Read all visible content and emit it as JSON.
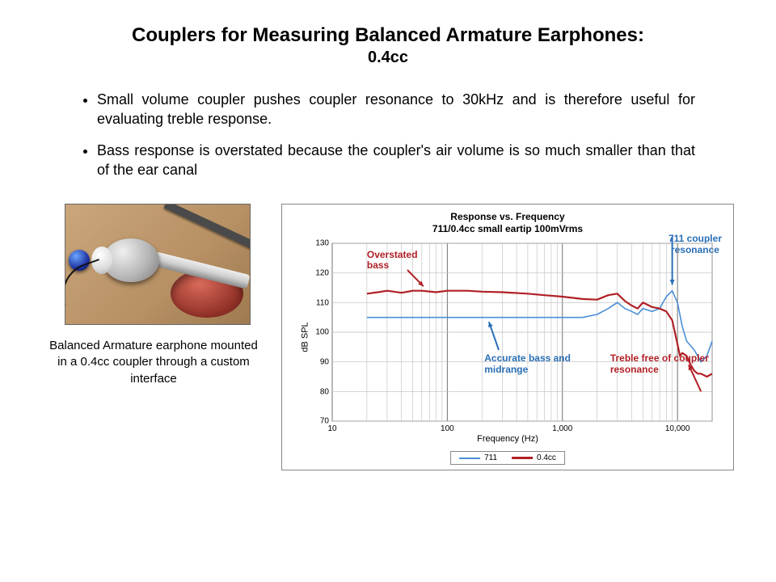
{
  "title": {
    "main": "Couplers for Measuring Balanced Armature Earphones:",
    "sub": "0.4cc"
  },
  "bullets": [
    "Small volume coupler pushes coupler resonance to 30kHz and is therefore useful for evaluating treble response.",
    "Bass response is overstated because the coupler's air volume is so much smaller than that of the ear canal"
  ],
  "photo": {
    "caption": "Balanced Armature earphone mounted in a 0.4cc coupler through a custom interface"
  },
  "chart": {
    "type": "line-log-x",
    "title_line1": "Response vs. Frequency",
    "title_line2": "711/0.4cc small eartip 100mVrms",
    "ylabel": "dB SPL",
    "xlabel": "Frequency (Hz)",
    "xlim": [
      10,
      20000
    ],
    "ylim": [
      70,
      130
    ],
    "ytick_step": 10,
    "yticks": [
      70,
      80,
      90,
      100,
      110,
      120,
      130
    ],
    "xticks_major": [
      10,
      100,
      1000,
      10000
    ],
    "xticks_minor": [
      20,
      30,
      40,
      50,
      60,
      70,
      80,
      90,
      200,
      300,
      400,
      500,
      600,
      700,
      800,
      900,
      2000,
      3000,
      4000,
      5000,
      6000,
      7000,
      8000,
      9000,
      20000
    ],
    "grid_major_color": "#707070",
    "grid_minor_color": "#bdbdbd",
    "background_color": "#ffffff",
    "line_width_711": 1.6,
    "line_width_04": 2.2,
    "series": [
      {
        "name": "711",
        "color": "#4a8fd8",
        "points": [
          [
            20,
            105
          ],
          [
            30,
            105
          ],
          [
            50,
            105
          ],
          [
            100,
            105
          ],
          [
            200,
            105
          ],
          [
            400,
            105
          ],
          [
            700,
            105
          ],
          [
            1000,
            105
          ],
          [
            1500,
            105
          ],
          [
            2000,
            106
          ],
          [
            2500,
            108
          ],
          [
            3000,
            110
          ],
          [
            3500,
            108
          ],
          [
            4000,
            107
          ],
          [
            4500,
            106
          ],
          [
            5000,
            108
          ],
          [
            6000,
            107
          ],
          [
            7000,
            108
          ],
          [
            8000,
            112
          ],
          [
            9000,
            114
          ],
          [
            10000,
            110
          ],
          [
            11000,
            102
          ],
          [
            12000,
            97
          ],
          [
            14000,
            94
          ],
          [
            16000,
            90
          ],
          [
            18000,
            92
          ],
          [
            20000,
            97
          ]
        ]
      },
      {
        "name": "0.4cc",
        "color": "#b02026",
        "points": [
          [
            20,
            113
          ],
          [
            25,
            113.5
          ],
          [
            30,
            114
          ],
          [
            40,
            113.3
          ],
          [
            50,
            114
          ],
          [
            60,
            114
          ],
          [
            80,
            113.5
          ],
          [
            100,
            114
          ],
          [
            150,
            114
          ],
          [
            200,
            113.7
          ],
          [
            300,
            113.5
          ],
          [
            500,
            113
          ],
          [
            700,
            112.5
          ],
          [
            1000,
            112
          ],
          [
            1500,
            111.2
          ],
          [
            2000,
            111
          ],
          [
            2500,
            112.5
          ],
          [
            3000,
            113
          ],
          [
            3500,
            110.5
          ],
          [
            4000,
            109
          ],
          [
            4500,
            108
          ],
          [
            5000,
            110
          ],
          [
            6000,
            108.5
          ],
          [
            7000,
            108
          ],
          [
            8000,
            107
          ],
          [
            9000,
            104
          ],
          [
            10000,
            96
          ],
          [
            10500,
            92
          ],
          [
            11000,
            93
          ],
          [
            12000,
            92
          ],
          [
            13000,
            89
          ],
          [
            14000,
            87
          ],
          [
            15000,
            86
          ],
          [
            16000,
            86
          ],
          [
            18000,
            85
          ],
          [
            20000,
            86
          ]
        ]
      }
    ],
    "legend": {
      "items": [
        "711",
        "0.4cc"
      ]
    },
    "annotations": {
      "overstated_bass": {
        "text": "Overstated bass",
        "color": "#b02026"
      },
      "accurate": {
        "text1": "Accurate bass and",
        "text2": "midrange",
        "color": "#2a6fb5"
      },
      "treble_free": {
        "text1": "Treble free of coupler",
        "text2": "resonance",
        "color": "#b02026"
      },
      "resonance_711": {
        "text1": "711 coupler",
        "text2": "resonance",
        "color": "#2a6fb5"
      }
    },
    "arrow_stroke_width": 2
  }
}
